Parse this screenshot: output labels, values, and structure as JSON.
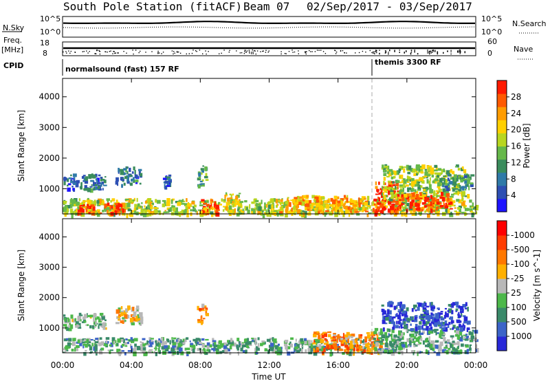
{
  "header": {
    "title": "South Pole Station (fitACF)",
    "beam": "Beam 07",
    "date_range": "02/Sep/2017 - 03/Sep/2017"
  },
  "status_panel": {
    "nsky_label": "N.Sky",
    "nsearch_label": "N.Search",
    "left_top_tick": "10^5",
    "left_bottom_tick": "10^0",
    "right_top_tick": "10^5",
    "right_bottom_tick": "10^0",
    "freq_label": "Freq.",
    "freq_unit": "[MHz]",
    "freq_top_tick": "18",
    "freq_bottom_tick": "8",
    "nave_label": "Nave",
    "nave_top_tick": "60",
    "nave_bottom_tick": "0",
    "cpid_label": "CPID",
    "cpid_segments": [
      {
        "label": "normalsound (fast) 157 RF",
        "start_hour": 0
      },
      {
        "label": "themis 3300 RF",
        "start_hour": 18
      }
    ]
  },
  "chart_data": [
    {
      "type": "heatmap",
      "panel": "power",
      "ylabel": "Slant Range [km]",
      "ylim": [
        180,
        4600
      ],
      "yticks": [
        1000,
        2000,
        3000,
        4000
      ],
      "xlim": [
        0,
        24
      ],
      "colorbar": {
        "label": "Power [dB]",
        "ticks": [
          "4",
          "8",
          "12",
          "16",
          "20",
          "24",
          "28"
        ],
        "colors": [
          "#1e14ff",
          "#2d4fb3",
          "#2f7aa8",
          "#3a8c5c",
          "#66b84a",
          "#b8d620",
          "#ffd000",
          "#ff9c00",
          "#ff5a00",
          "#ff1a00"
        ]
      },
      "blobs": [
        {
          "x": [
            0.0,
            2.5
          ],
          "y": [
            1000,
            1500
          ],
          "level": 0.25
        },
        {
          "x": [
            0.0,
            24.0
          ],
          "y": [
            180,
            700
          ],
          "level": 0.55
        },
        {
          "x": [
            0.8,
            3.5
          ],
          "y": [
            200,
            550
          ],
          "level": 0.9
        },
        {
          "x": [
            3.0,
            4.5
          ],
          "y": [
            1150,
            1750
          ],
          "level": 0.25
        },
        {
          "x": [
            5.8,
            6.2
          ],
          "y": [
            1100,
            1500
          ],
          "level": 0.2
        },
        {
          "x": [
            7.8,
            8.3
          ],
          "y": [
            1100,
            1800
          ],
          "level": 0.4
        },
        {
          "x": [
            8.0,
            9.0
          ],
          "y": [
            200,
            700
          ],
          "level": 0.85
        },
        {
          "x": [
            9.3,
            10.3
          ],
          "y": [
            300,
            900
          ],
          "level": 0.6
        },
        {
          "x": [
            12.5,
            17.8
          ],
          "y": [
            250,
            800
          ],
          "level": 0.7
        },
        {
          "x": [
            18.0,
            19.5
          ],
          "y": [
            250,
            1300
          ],
          "level": 0.95
        },
        {
          "x": [
            18.5,
            23.5
          ],
          "y": [
            700,
            1800
          ],
          "level": 0.5
        },
        {
          "x": [
            19.5,
            22.5
          ],
          "y": [
            300,
            900
          ],
          "level": 0.85
        },
        {
          "x": [
            22.0,
            23.8
          ],
          "y": [
            1000,
            1500
          ],
          "level": 0.3
        }
      ]
    },
    {
      "type": "heatmap",
      "panel": "velocity",
      "ylabel": "Slant Range [km]",
      "xlabel": "Time UT",
      "ylim": [
        180,
        4600
      ],
      "yticks": [
        1000,
        2000,
        3000,
        4000
      ],
      "xlim": [
        0,
        24
      ],
      "xtick_labels": [
        "00:00",
        "04:00",
        "08:00",
        "12:00",
        "16:00",
        "20:00",
        "00:00"
      ],
      "colorbar": {
        "label": "Velocity [m s^-1]",
        "ticks": [
          "1000",
          "500",
          "100",
          "25",
          "-25",
          "-100",
          "-500",
          "-1000"
        ],
        "colors": [
          "#2828d8",
          "#3c64c8",
          "#3a8a6a",
          "#4db84a",
          "#b8b8b8",
          "#ffb000",
          "#ff7800",
          "#ff3c00",
          "#ff0000"
        ]
      },
      "blobs": [
        {
          "x": [
            0.0,
            2.5
          ],
          "y": [
            1000,
            1500
          ],
          "level": 0.4
        },
        {
          "x": [
            0.0,
            18.0
          ],
          "y": [
            200,
            700
          ],
          "level": 0.35
        },
        {
          "x": [
            3.0,
            4.5
          ],
          "y": [
            1150,
            1750
          ],
          "level": 0.55
        },
        {
          "x": [
            7.8,
            8.3
          ],
          "y": [
            1100,
            1800
          ],
          "level": 0.7
        },
        {
          "x": [
            14.5,
            18.5
          ],
          "y": [
            200,
            900
          ],
          "level": 0.7
        },
        {
          "x": [
            18.0,
            24.0
          ],
          "y": [
            200,
            1000
          ],
          "level": 0.35
        },
        {
          "x": [
            18.5,
            23.5
          ],
          "y": [
            1000,
            1900
          ],
          "level": 0.1
        }
      ]
    }
  ]
}
